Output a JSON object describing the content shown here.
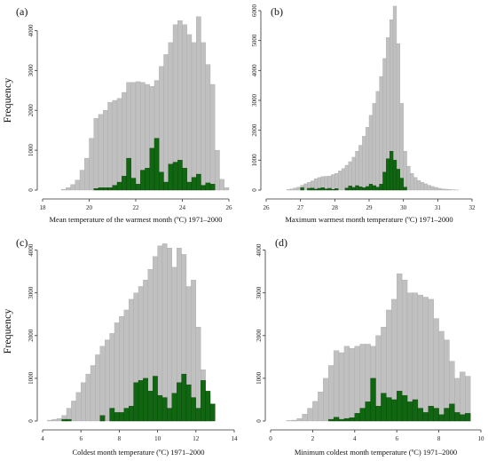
{
  "chart_data": [
    {
      "type": "bar",
      "panel": "(a)",
      "xlabel": "Mean temperature of the warmest month (ºC) 1971–2000",
      "ylabel": "Frequency",
      "xlim": [
        18,
        26
      ],
      "ylim": [
        0,
        4500
      ],
      "xticks": [
        18,
        20,
        22,
        24,
        26
      ],
      "yticks": [
        0,
        1000,
        2000,
        3000,
        4000
      ],
      "bin_start": 18.8,
      "bin_width": 0.2,
      "series": [
        {
          "color": "#c0c0c0",
          "values": [
            20,
            60,
            140,
            250,
            500,
            800,
            1300,
            1800,
            1900,
            2000,
            2200,
            2250,
            2300,
            2450,
            2700,
            2700,
            2720,
            2700,
            2650,
            2600,
            2750,
            3100,
            3400,
            3700,
            4150,
            4250,
            4150,
            3900,
            3700,
            4350,
            3700,
            3150,
            2650,
            1000,
            270,
            60
          ]
        },
        {
          "color": "#116611",
          "values": [
            0,
            0,
            0,
            0,
            0,
            0,
            0,
            40,
            60,
            60,
            60,
            120,
            200,
            350,
            800,
            300,
            150,
            500,
            550,
            1050,
            1300,
            450,
            200,
            650,
            700,
            750,
            550,
            200,
            320,
            400,
            120,
            180,
            150,
            0,
            0,
            0
          ]
        }
      ]
    },
    {
      "type": "bar",
      "panel": "(b)",
      "xlabel": "Maximum warmest month temperature (ºC) 1971–2000",
      "ylabel": "",
      "xlim": [
        26,
        32
      ],
      "ylim": [
        0,
        6000
      ],
      "xticks": [
        26,
        27,
        28,
        29,
        30,
        31,
        32
      ],
      "yticks": [
        0,
        1000,
        2000,
        3000,
        4000,
        5000,
        6000
      ],
      "bin_start": 26.0,
      "bin_width": 0.1,
      "series": [
        {
          "color": "#c0c0c0",
          "values": [
            0,
            0,
            0,
            0,
            0,
            0,
            20,
            40,
            70,
            100,
            160,
            210,
            260,
            310,
            380,
            420,
            450,
            460,
            470,
            520,
            560,
            640,
            720,
            830,
            950,
            1100,
            1300,
            1500,
            1800,
            2100,
            2500,
            2900,
            3300,
            3800,
            4400,
            5100,
            5700,
            6150,
            4900,
            2900,
            1300,
            800,
            560,
            420,
            320,
            260,
            210,
            160,
            120,
            90,
            60,
            40,
            30,
            20,
            10,
            5,
            0,
            0,
            0,
            0
          ]
        },
        {
          "color": "#116611",
          "values": [
            0,
            0,
            0,
            0,
            0,
            0,
            0,
            0,
            0,
            0,
            80,
            0,
            60,
            70,
            30,
            60,
            80,
            40,
            60,
            20,
            50,
            0,
            0,
            70,
            140,
            90,
            150,
            110,
            80,
            120,
            200,
            150,
            100,
            200,
            600,
            1050,
            1300,
            1000,
            700,
            400,
            100,
            0,
            0,
            0,
            0,
            0,
            0,
            0,
            0,
            0,
            0,
            0,
            0,
            0,
            0,
            0,
            0,
            0,
            0,
            0
          ]
        }
      ]
    },
    {
      "type": "bar",
      "panel": "(c)",
      "xlabel": "Coldest month temperature (ºC) 1971–2000",
      "ylabel": "Frequency",
      "xlim": [
        4,
        14
      ],
      "ylim": [
        0,
        4200
      ],
      "xticks": [
        4,
        6,
        8,
        10,
        12,
        14
      ],
      "yticks": [
        0,
        1000,
        2000,
        3000,
        4000
      ],
      "bin_start": 4.0,
      "bin_width": 0.25,
      "series": [
        {
          "color": "#c0c0c0",
          "values": [
            0,
            20,
            40,
            60,
            130,
            300,
            470,
            670,
            900,
            1100,
            1300,
            1550,
            1750,
            1900,
            2050,
            2300,
            2450,
            2600,
            2850,
            3000,
            3150,
            3300,
            3550,
            3850,
            4100,
            4150,
            4050,
            3600,
            4050,
            3900,
            3150,
            3300,
            2200,
            1200,
            600,
            0
          ]
        },
        {
          "color": "#116611",
          "values": [
            0,
            0,
            0,
            0,
            40,
            40,
            0,
            0,
            0,
            0,
            0,
            0,
            130,
            0,
            300,
            200,
            200,
            300,
            350,
            900,
            950,
            1000,
            700,
            1050,
            600,
            550,
            300,
            650,
            900,
            1100,
            850,
            550,
            300,
            950,
            700,
            400
          ]
        }
      ]
    },
    {
      "type": "bar",
      "panel": "(d)",
      "xlabel": "Minimum coldest month temperature (ºC) 1971–2000",
      "ylabel": "",
      "xlim": [
        0,
        10
      ],
      "ylim": [
        0,
        4200
      ],
      "xticks": [
        0,
        2,
        4,
        6,
        8,
        10
      ],
      "yticks": [
        0,
        1000,
        2000,
        3000,
        4000
      ],
      "bin_start": 0.0,
      "bin_width": 0.25,
      "series": [
        {
          "color": "#c0c0c0",
          "values": [
            0,
            0,
            0,
            10,
            20,
            60,
            160,
            300,
            460,
            680,
            1000,
            1300,
            1650,
            1600,
            1750,
            1700,
            1750,
            1800,
            1800,
            1750,
            2000,
            2200,
            2600,
            2850,
            3450,
            3300,
            3000,
            3000,
            2950,
            2900,
            2850,
            2400,
            2100,
            1900,
            1400,
            1000,
            1150,
            1050,
            0,
            0
          ]
        },
        {
          "color": "#116611",
          "values": [
            0,
            0,
            0,
            0,
            0,
            0,
            0,
            0,
            0,
            0,
            0,
            40,
            90,
            40,
            60,
            80,
            180,
            300,
            450,
            1000,
            350,
            650,
            550,
            500,
            700,
            600,
            450,
            500,
            300,
            200,
            350,
            300,
            150,
            300,
            400,
            200,
            150,
            180,
            0,
            0
          ]
        }
      ]
    }
  ]
}
